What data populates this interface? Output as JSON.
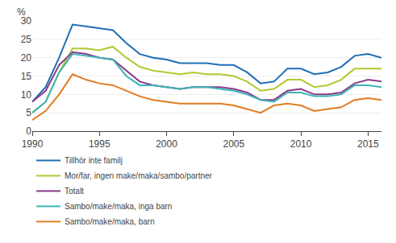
{
  "chart_data": {
    "type": "line",
    "ylabel": "%",
    "x": [
      1990,
      1991,
      1992,
      1993,
      1994,
      1995,
      1996,
      1997,
      1998,
      1999,
      2000,
      2001,
      2002,
      2003,
      2004,
      2005,
      2006,
      2007,
      2008,
      2009,
      2010,
      2011,
      2012,
      2013,
      2014,
      2015,
      2016
    ],
    "series": [
      {
        "name": "Tillhör inte familj",
        "color": "#1f6eb5",
        "values": [
          8.0,
          12.0,
          20.0,
          29.0,
          28.5,
          28.0,
          27.5,
          24.0,
          21.0,
          20.0,
          19.5,
          18.5,
          18.5,
          18.5,
          18.0,
          18.0,
          16.0,
          13.0,
          13.5,
          17.0,
          17.0,
          15.5,
          16.0,
          17.5,
          20.5,
          21.0,
          20.0
        ]
      },
      {
        "name": "Mor/far, ingen make/maka/sambo/partner",
        "color": "#b5c732",
        "values": [
          5.0,
          8.0,
          16.0,
          22.5,
          22.5,
          22.0,
          23.0,
          20.0,
          17.5,
          16.5,
          16.0,
          15.5,
          16.0,
          15.5,
          15.5,
          15.0,
          13.5,
          11.0,
          11.5,
          14.0,
          14.0,
          12.0,
          12.5,
          14.0,
          17.0,
          17.0,
          17.0
        ]
      },
      {
        "name": "Totalt",
        "color": "#8b3a8b",
        "values": [
          8.0,
          11.0,
          18.0,
          21.5,
          21.0,
          20.0,
          19.5,
          16.5,
          13.5,
          12.5,
          12.0,
          11.5,
          12.0,
          12.0,
          12.0,
          11.5,
          10.5,
          8.5,
          8.5,
          11.0,
          11.5,
          10.0,
          10.0,
          10.5,
          13.0,
          14.0,
          13.5
        ]
      },
      {
        "name": "Sambo/make/maka, inga barn",
        "color": "#3ab5b5",
        "values": [
          5.0,
          8.0,
          16.0,
          21.0,
          20.5,
          20.0,
          19.5,
          15.0,
          12.5,
          12.5,
          12.0,
          11.5,
          12.0,
          12.0,
          11.5,
          11.0,
          10.0,
          8.5,
          8.0,
          10.5,
          10.5,
          9.5,
          9.5,
          10.0,
          12.5,
          12.5,
          12.0
        ]
      },
      {
        "name": "Sambo/make/maka, barn",
        "color": "#e07b20",
        "values": [
          3.0,
          5.5,
          10.0,
          15.5,
          14.0,
          13.0,
          12.5,
          11.0,
          9.5,
          8.5,
          8.0,
          7.5,
          7.5,
          7.5,
          7.5,
          7.0,
          6.0,
          5.0,
          7.0,
          7.5,
          7.0,
          5.5,
          6.0,
          6.5,
          8.5,
          9.0,
          8.5
        ]
      }
    ],
    "xlim": [
      1990,
      2016
    ],
    "xticks": [
      1990,
      1995,
      2000,
      2005,
      2010,
      2015
    ],
    "ylim": [
      0,
      30
    ],
    "yticks": [
      0,
      5,
      10,
      15,
      20,
      25,
      30
    ],
    "grid": true,
    "legend": "below"
  }
}
